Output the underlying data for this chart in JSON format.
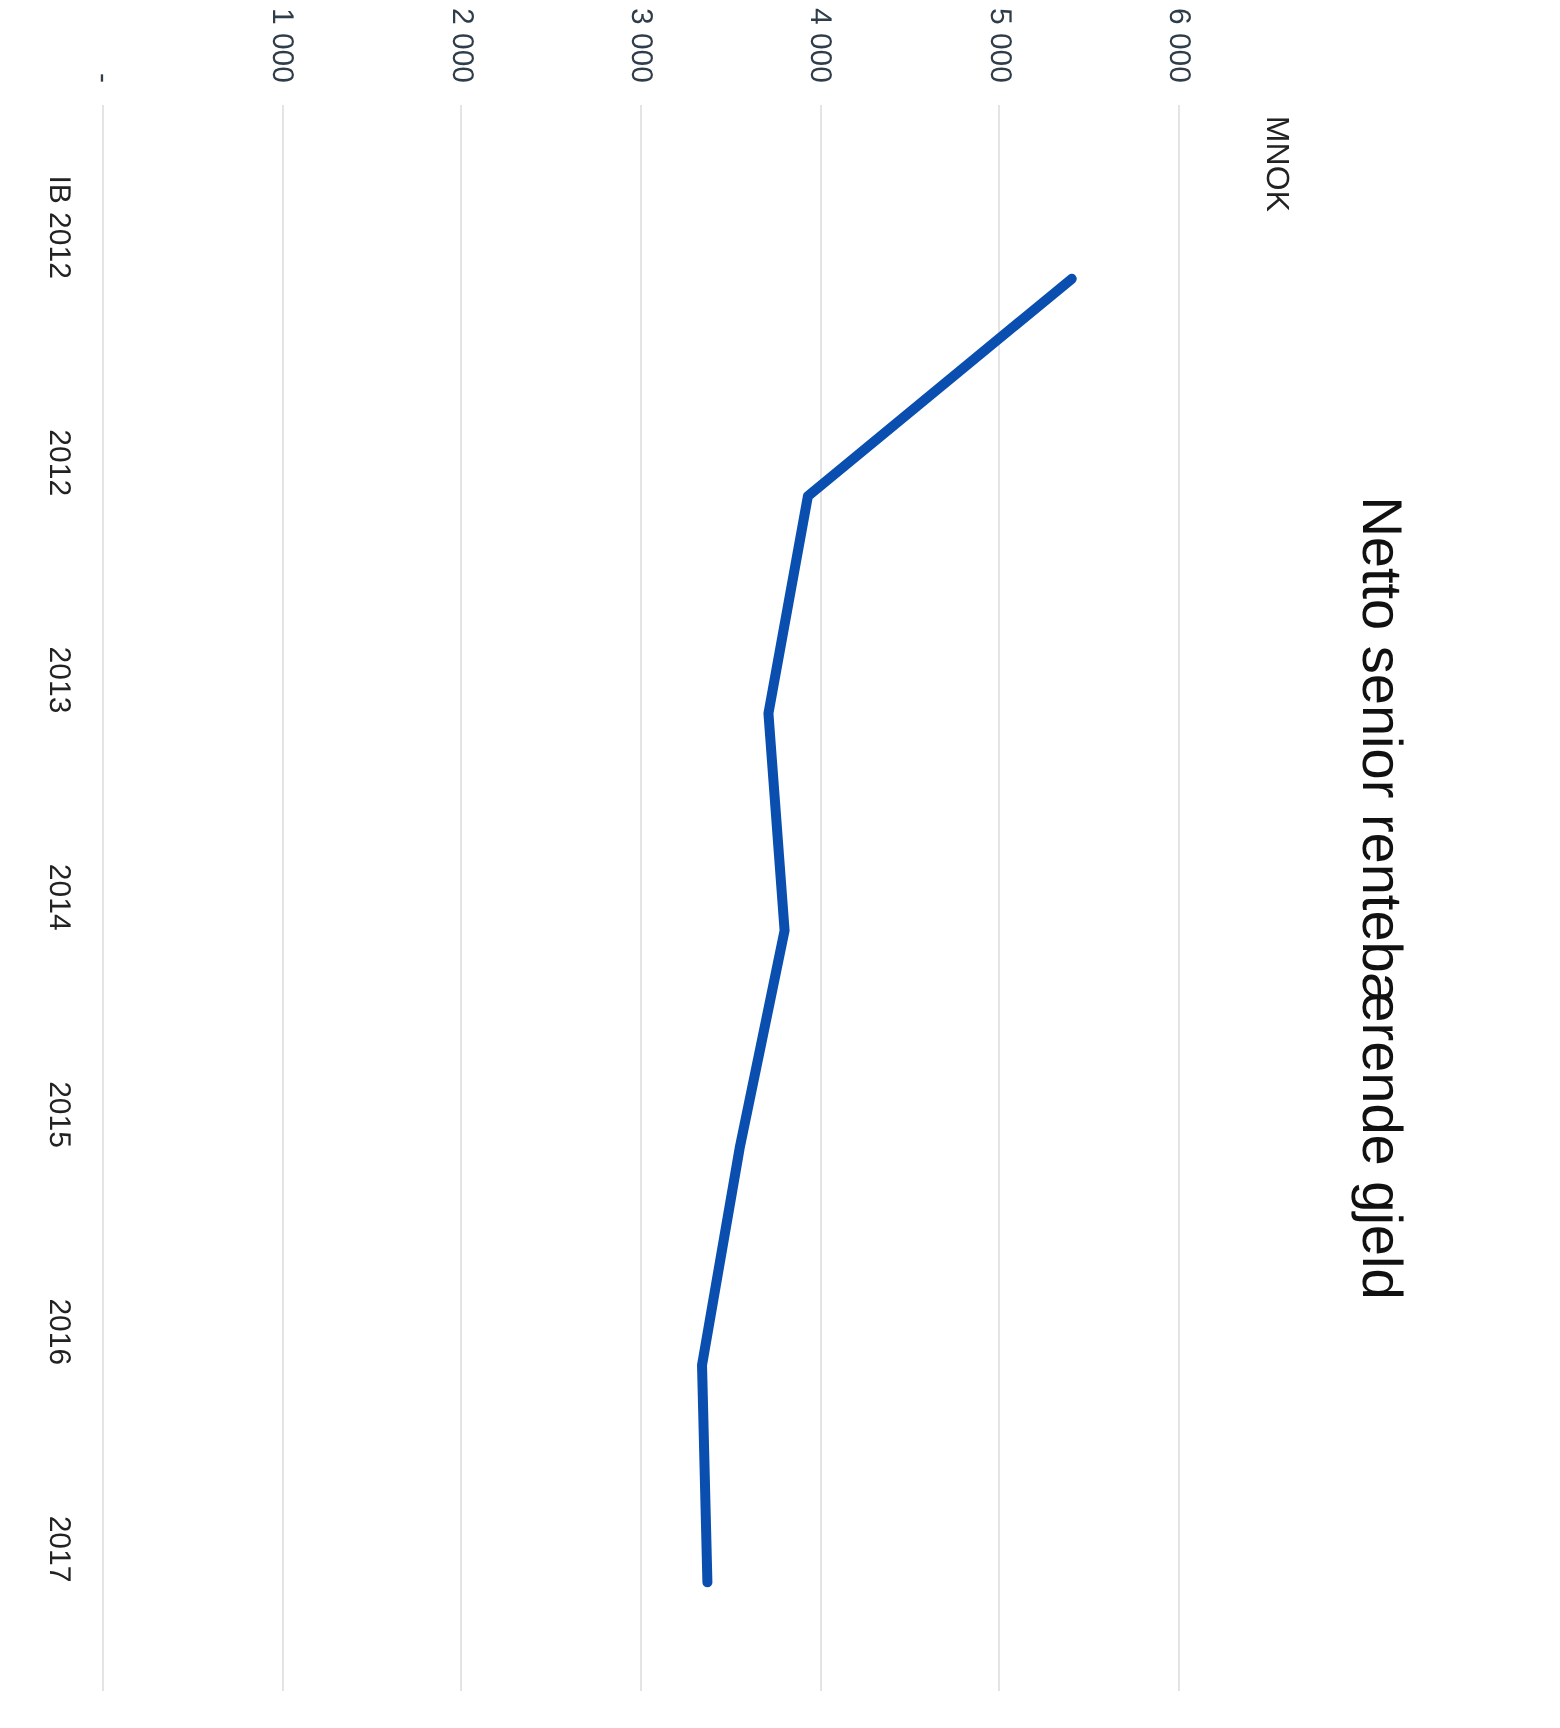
{
  "chart_data": {
    "type": "line",
    "title": "Netto senior rentebærende gjeld",
    "annotations": [
      "MNOK"
    ],
    "orientation": "horizontal",
    "categories": [
      "IB 2012",
      "2012",
      "2013",
      "2014",
      "2015",
      "2016",
      "2017"
    ],
    "series": [
      {
        "color": "#0a4fb0",
        "values": [
          5400,
          3930,
          3710,
          3800,
          3550,
          3340,
          3370
        ]
      }
    ],
    "xlim": [
      0,
      6000
    ],
    "xticks": [
      {
        "value": 0,
        "label": "-"
      },
      {
        "value": 1000,
        "label": "1 000"
      },
      {
        "value": 2000,
        "label": "2 000"
      },
      {
        "value": 3000,
        "label": "3 000"
      },
      {
        "value": 4000,
        "label": "4 000"
      },
      {
        "value": 5000,
        "label": "5 000"
      },
      {
        "value": 6000,
        "label": "6 000"
      }
    ],
    "grid": "x"
  }
}
